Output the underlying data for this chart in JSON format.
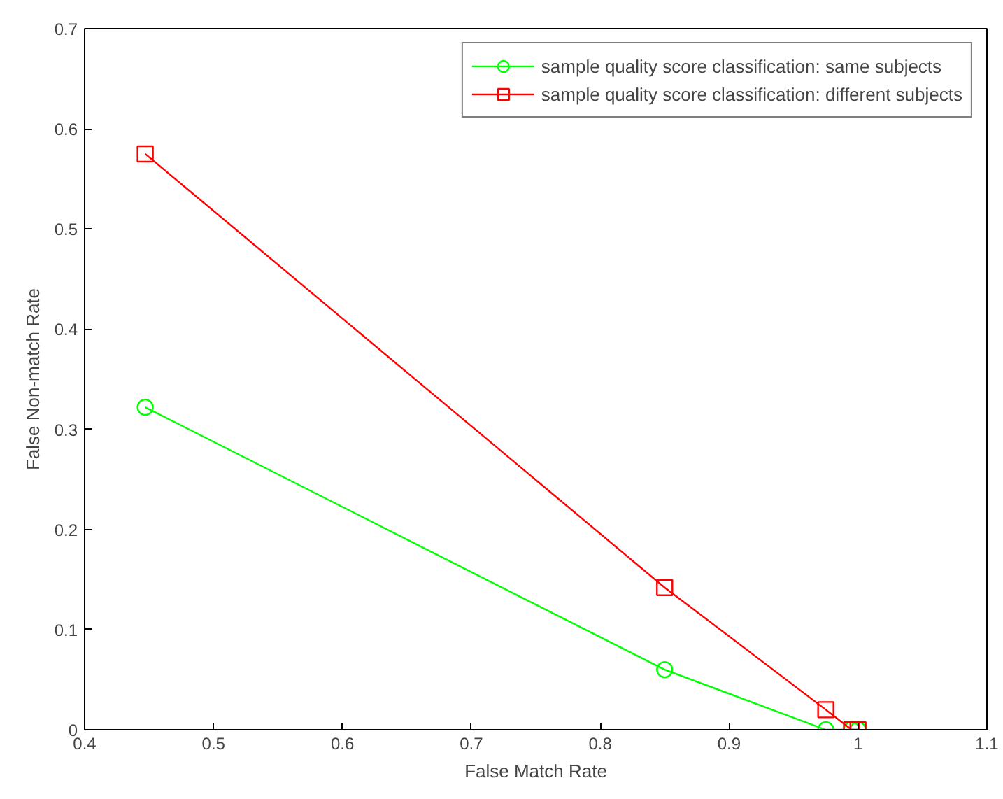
{
  "chart_data": {
    "type": "line",
    "xlabel": "False Match Rate",
    "ylabel": "False Non-match Rate",
    "xlim": [
      0.4,
      1.1
    ],
    "ylim": [
      0,
      0.7
    ],
    "xticks": [
      0.4,
      0.5,
      0.6,
      0.7,
      0.8,
      0.9,
      1,
      1.1
    ],
    "yticks": [
      0,
      0.1,
      0.2,
      0.3,
      0.4,
      0.5,
      0.6,
      0.7
    ],
    "grid": false,
    "legend": "top right",
    "line_style": "solid",
    "series": [
      {
        "name": "sample quality score classification: same subjects",
        "color": "#00ff00",
        "marker": "circle",
        "x": [
          0.447,
          0.85,
          0.975,
          0.995,
          1.0
        ],
        "values": [
          0.322,
          0.06,
          0.0,
          0.0,
          0.0
        ]
      },
      {
        "name": "sample quality score classification: different subjects",
        "color": "#ff0000",
        "marker": "square",
        "x": [
          0.447,
          0.85,
          0.975,
          0.995,
          1.0
        ],
        "values": [
          0.575,
          0.142,
          0.02,
          0.0,
          0.0
        ]
      }
    ]
  }
}
